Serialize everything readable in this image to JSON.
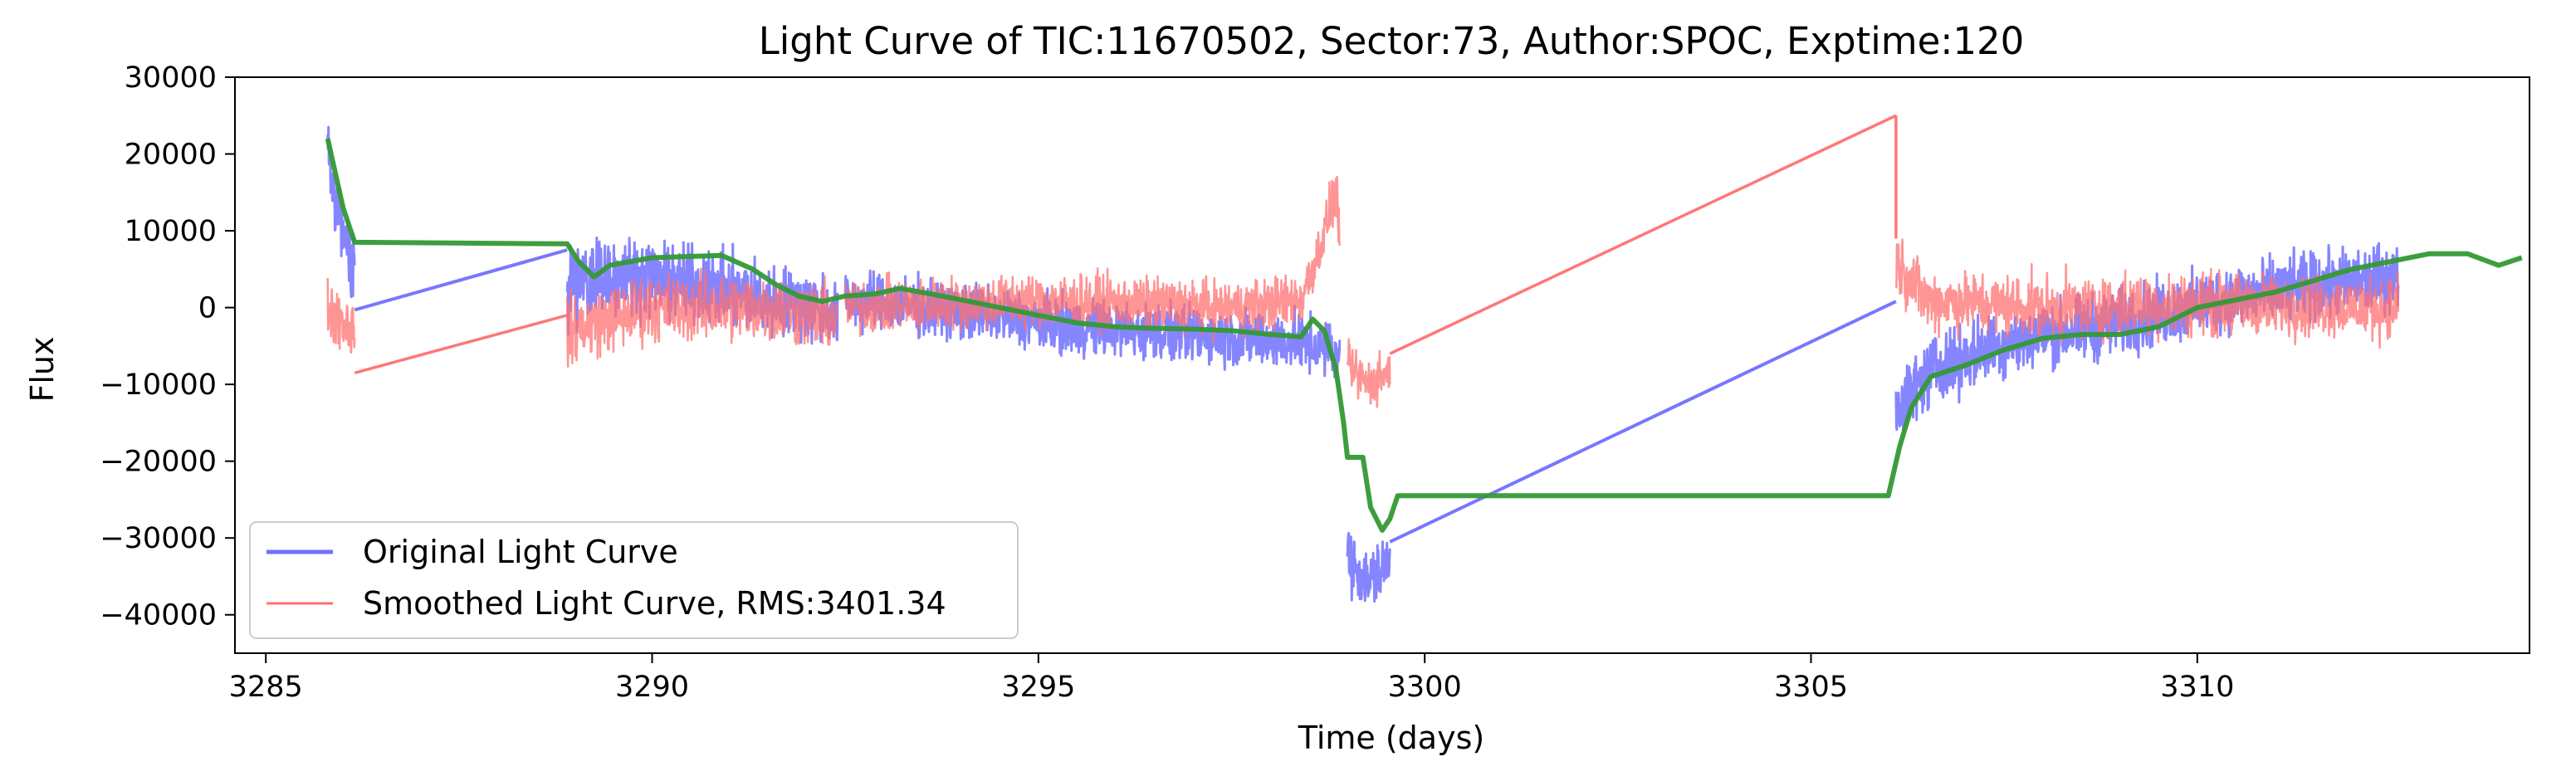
{
  "chart_data": {
    "type": "line",
    "title": "Light Curve of TIC:11670502, Sector:73, Author:SPOC, Exptime:120",
    "xlabel": "Time (days)",
    "ylabel": "Flux",
    "xlim": [
      3284.6,
      3314.3
    ],
    "ylim": [
      -45000,
      30000
    ],
    "xticks": [
      3285,
      3290,
      3295,
      3300,
      3305,
      3310
    ],
    "yticks": [
      30000,
      20000,
      10000,
      0,
      -10000,
      -20000,
      -30000,
      -40000
    ],
    "xtick_labels": [
      "3285",
      "3290",
      "3295",
      "3300",
      "3305",
      "3310"
    ],
    "ytick_labels": [
      "30000",
      "20000",
      "10000",
      "0",
      "−10000",
      "−20000",
      "−30000",
      "−40000"
    ],
    "grid": false,
    "legend_position": "lower-left",
    "series": [
      {
        "name": "Original Light Curve",
        "color": "#7070ff",
        "segments": [
          {
            "x_start": 3285.8,
            "x_end": 3286.15,
            "trend": [
              [
                3285.8,
                21000
              ],
              [
                3285.95,
                12000
              ],
              [
                3286.15,
                4000
              ]
            ],
            "scatter": 4000
          },
          {
            "x_start": 3288.9,
            "x_end": 3292.4,
            "trend": [
              [
                3288.9,
                3000
              ],
              [
                3289.5,
                4500
              ],
              [
                3290.5,
                3000
              ],
              [
                3291.5,
                1000
              ],
              [
                3292.4,
                -500
              ]
            ],
            "scatter": 4200
          },
          {
            "x_start": 3292.5,
            "x_end": 3298.9,
            "trend": [
              [
                3292.5,
                1000
              ],
              [
                3294,
                -500
              ],
              [
                3295.5,
                -2500
              ],
              [
                3297,
                -3500
              ],
              [
                3298.4,
                -4500
              ],
              [
                3298.9,
                -6000
              ]
            ],
            "scatter": 3200
          },
          {
            "x_start": 3299.0,
            "x_end": 3299.55,
            "trend": [
              [
                3299.0,
                -32000
              ],
              [
                3299.25,
                -36000
              ],
              [
                3299.55,
                -33000
              ]
            ],
            "scatter": 3500
          },
          {
            "x_start": 3306.1,
            "x_end": 3312.6,
            "trend": [
              [
                3306.1,
                -13000
              ],
              [
                3306.6,
                -8000
              ],
              [
                3307.5,
                -4500
              ],
              [
                3309,
                -2000
              ],
              [
                3310.5,
                1500
              ],
              [
                3312.6,
                4000
              ]
            ],
            "scatter": 3800
          }
        ],
        "gap_lines": [
          [
            [
              3286.15,
              -300
            ],
            [
              3288.9,
              7500
            ]
          ],
          [
            [
              3299.55,
              -30500
            ],
            [
              3306.1,
              800
            ]
          ]
        ]
      },
      {
        "name": "Smoothed Light Curve, RMS:3401.34",
        "color": "#ff7070",
        "segments": [
          {
            "x_start": 3285.8,
            "x_end": 3286.15,
            "trend": [
              [
                3285.8,
                0
              ],
              [
                3286.15,
                -3000
              ]
            ],
            "scatter": 3500
          },
          {
            "x_start": 3288.9,
            "x_end": 3292.4,
            "trend": [
              [
                3288.9,
                -3000
              ],
              [
                3290,
                0
              ],
              [
                3291.5,
                0
              ],
              [
                3292.4,
                -1500
              ]
            ],
            "scatter": 3800
          },
          {
            "x_start": 3292.5,
            "x_end": 3298.9,
            "trend": [
              [
                3292.5,
                0
              ],
              [
                3295,
                1000
              ],
              [
                3297.5,
                0
              ],
              [
                3298.4,
                1000
              ],
              [
                3298.65,
                8000
              ],
              [
                3298.85,
                15000
              ],
              [
                3298.95,
                6000
              ]
            ],
            "scatter": 3000
          },
          {
            "x_start": 3299.0,
            "x_end": 3299.55,
            "trend": [
              [
                3299.0,
                -8000
              ],
              [
                3299.3,
                -10000
              ],
              [
                3299.55,
                -8000
              ]
            ],
            "scatter": 2800
          },
          {
            "x_start": 3306.1,
            "x_end": 3312.6,
            "trend": [
              [
                3306.1,
                6000
              ],
              [
                3306.5,
                1000
              ],
              [
                3308,
                0
              ],
              [
                3310,
                500
              ],
              [
                3312.6,
                0
              ]
            ],
            "scatter": 3500
          }
        ],
        "gap_lines": [
          [
            [
              3286.15,
              -8500
            ],
            [
              3288.9,
              -1000
            ]
          ],
          [
            [
              3299.55,
              -6000
            ],
            [
              3306.1,
              25000
            ]
          ],
          [
            [
              3306.1,
              25000
            ],
            [
              3306.1,
              9000
            ]
          ]
        ]
      },
      {
        "name": "",
        "color": "#339933",
        "points": [
          [
            3285.8,
            22000
          ],
          [
            3286.0,
            13000
          ],
          [
            3286.15,
            8500
          ],
          [
            3288.9,
            8300
          ],
          [
            3289.05,
            6000
          ],
          [
            3289.25,
            4000
          ],
          [
            3289.45,
            5500
          ],
          [
            3290.0,
            6500
          ],
          [
            3290.9,
            6800
          ],
          [
            3291.3,
            5000
          ],
          [
            3291.6,
            3000
          ],
          [
            3291.9,
            1500
          ],
          [
            3292.2,
            800
          ],
          [
            3292.5,
            1500
          ],
          [
            3292.9,
            1800
          ],
          [
            3293.2,
            2500
          ],
          [
            3293.6,
            1800
          ],
          [
            3294.0,
            1000
          ],
          [
            3294.5,
            0
          ],
          [
            3295.0,
            -1000
          ],
          [
            3295.5,
            -2000
          ],
          [
            3296.0,
            -2500
          ],
          [
            3296.5,
            -2700
          ],
          [
            3297.0,
            -2800
          ],
          [
            3297.5,
            -3000
          ],
          [
            3298.0,
            -3500
          ],
          [
            3298.4,
            -3800
          ],
          [
            3298.55,
            -1500
          ],
          [
            3298.7,
            -3000
          ],
          [
            3298.85,
            -8000
          ],
          [
            3298.95,
            -15000
          ],
          [
            3299.0,
            -19500
          ],
          [
            3299.2,
            -19500
          ],
          [
            3299.3,
            -26000
          ],
          [
            3299.45,
            -29000
          ],
          [
            3299.55,
            -27500
          ],
          [
            3299.65,
            -24500
          ],
          [
            3306.0,
            -24500
          ],
          [
            3306.15,
            -18000
          ],
          [
            3306.3,
            -13000
          ],
          [
            3306.55,
            -9000
          ],
          [
            3307.0,
            -7500
          ],
          [
            3307.5,
            -5500
          ],
          [
            3308.0,
            -4000
          ],
          [
            3308.5,
            -3500
          ],
          [
            3309.0,
            -3500
          ],
          [
            3309.5,
            -2500
          ],
          [
            3310.0,
            0
          ],
          [
            3310.5,
            1000
          ],
          [
            3311.0,
            2000
          ],
          [
            3311.5,
            3500
          ],
          [
            3312.0,
            5000
          ],
          [
            3312.5,
            6000
          ],
          [
            3313.0,
            7000
          ],
          [
            3313.5,
            7000
          ],
          [
            3313.9,
            5500
          ],
          [
            3314.2,
            6500
          ]
        ]
      }
    ]
  }
}
